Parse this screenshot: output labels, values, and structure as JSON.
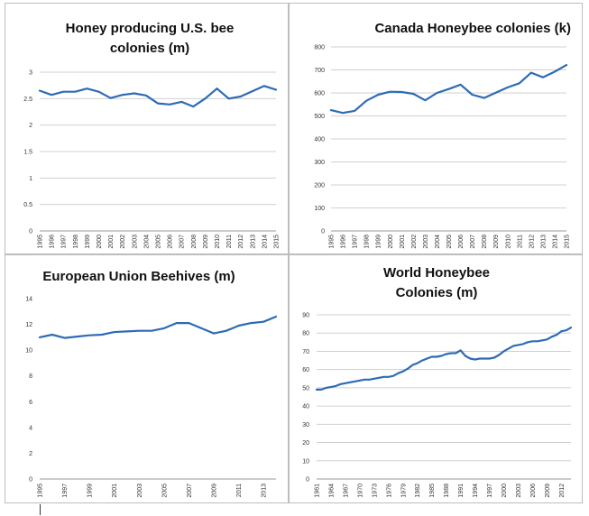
{
  "chart_data": [
    {
      "type": "line",
      "title_lines": [
        "Honey producing U.S. bee",
        "colonies (m)"
      ],
      "categories": [
        "1995",
        "1996",
        "1997",
        "1998",
        "1999",
        "2000",
        "2001",
        "2002",
        "2003",
        "2004",
        "2005",
        "2006",
        "2007",
        "2008",
        "2009",
        "2010",
        "2011",
        "2012",
        "2013",
        "2014",
        "2015"
      ],
      "values": [
        2.65,
        2.57,
        2.63,
        2.63,
        2.69,
        2.63,
        2.51,
        2.57,
        2.6,
        2.56,
        2.41,
        2.39,
        2.44,
        2.35,
        2.5,
        2.69,
        2.5,
        2.54,
        2.64,
        2.74,
        2.67
      ],
      "ylim": [
        0,
        3
      ],
      "yticks": [
        0,
        0.5,
        1,
        1.5,
        2,
        2.5,
        3
      ],
      "ytick_labels": [
        "0",
        "0.5",
        "1",
        "1.5",
        "2",
        "2.5",
        "3"
      ],
      "xtick_labels": [
        "1995",
        "1996",
        "1997",
        "1998",
        "1999",
        "2000",
        "2001",
        "2002",
        "2003",
        "2004",
        "2005",
        "2006",
        "2007",
        "2008",
        "2009",
        "2010",
        "2011",
        "2012",
        "2013",
        "2014",
        "2015"
      ],
      "grid": true
    },
    {
      "type": "line",
      "title_lines": [
        "Canada Honeybee colonies (k)"
      ],
      "categories": [
        "1995",
        "1996",
        "1997",
        "1998",
        "1999",
        "2000",
        "2001",
        "2002",
        "2003",
        "2004",
        "2005",
        "2006",
        "2007",
        "2008",
        "2009",
        "2010",
        "2011",
        "2012",
        "2013",
        "2014",
        "2015"
      ],
      "values": [
        525,
        513,
        522,
        566,
        592,
        605,
        604,
        596,
        568,
        600,
        617,
        636,
        592,
        578,
        601,
        624,
        642,
        688,
        668,
        692,
        721
      ],
      "ylim": [
        0,
        800
      ],
      "yticks": [
        0,
        100,
        200,
        300,
        400,
        500,
        600,
        700,
        800
      ],
      "ytick_labels": [
        "0",
        "100",
        "200",
        "300",
        "400",
        "500",
        "600",
        "700",
        "800"
      ],
      "xtick_labels": [
        "1995",
        "1996",
        "1997",
        "1998",
        "1999",
        "2000",
        "2001",
        "2002",
        "2003",
        "2004",
        "2005",
        "2006",
        "2007",
        "2008",
        "2009",
        "2010",
        "2011",
        "2012",
        "2013",
        "2014",
        "2015"
      ],
      "grid": true
    },
    {
      "type": "line",
      "title_lines": [
        "European Union Beehives (m)"
      ],
      "categories": [
        "1995",
        "1996",
        "1997",
        "1998",
        "1999",
        "2000",
        "2001",
        "2002",
        "2003",
        "2004",
        "2005",
        "2006",
        "2007",
        "2008",
        "2009",
        "2010",
        "2011",
        "2012",
        "2013",
        "2014"
      ],
      "values": [
        11.0,
        11.2,
        10.95,
        11.05,
        11.15,
        11.2,
        11.4,
        11.45,
        11.5,
        11.5,
        11.7,
        12.1,
        12.1,
        11.7,
        11.3,
        11.5,
        11.9,
        12.1,
        12.2,
        12.6
      ],
      "ylim": [
        0,
        14
      ],
      "yticks": [
        0,
        2,
        4,
        6,
        8,
        10,
        12,
        14
      ],
      "ytick_labels": [
        "0",
        "2",
        "4",
        "6",
        "8",
        "10",
        "12",
        "14"
      ],
      "xtick_labels": [
        "1995",
        "1997",
        "1999",
        "2001",
        "2003",
        "2005",
        "2007",
        "2009",
        "2011",
        "2013"
      ],
      "grid": false
    },
    {
      "type": "line",
      "title_lines": [
        "World Honeybee",
        "Colonies (m)"
      ],
      "categories": [
        "1961",
        "1962",
        "1963",
        "1964",
        "1965",
        "1966",
        "1967",
        "1968",
        "1969",
        "1970",
        "1971",
        "1972",
        "1973",
        "1974",
        "1975",
        "1976",
        "1977",
        "1978",
        "1979",
        "1980",
        "1981",
        "1982",
        "1983",
        "1984",
        "1985",
        "1986",
        "1987",
        "1988",
        "1989",
        "1990",
        "1991",
        "1992",
        "1993",
        "1994",
        "1995",
        "1996",
        "1997",
        "1998",
        "1999",
        "2000",
        "2001",
        "2002",
        "2003",
        "2004",
        "2005",
        "2006",
        "2007",
        "2008",
        "2009",
        "2010",
        "2011",
        "2012",
        "2013",
        "2014"
      ],
      "values": [
        49,
        49,
        50,
        50.5,
        51,
        52,
        52.5,
        53,
        53.5,
        54,
        54.5,
        54.5,
        55,
        55.5,
        56,
        56,
        56.5,
        58,
        59,
        60.5,
        62.5,
        63.5,
        65,
        66,
        67,
        67,
        67.5,
        68.5,
        69,
        69,
        70.5,
        67.5,
        66,
        65.5,
        66,
        66,
        66,
        66.5,
        68,
        70,
        71.5,
        73,
        73.5,
        74,
        75,
        75.5,
        75.5,
        76,
        76.5,
        78,
        79,
        81,
        81.5,
        83
      ],
      "ylim": [
        0,
        90
      ],
      "yticks": [
        0,
        10,
        20,
        30,
        40,
        50,
        60,
        70,
        80,
        90
      ],
      "ytick_labels": [
        "0",
        "10",
        "20",
        "30",
        "40",
        "50",
        "60",
        "70",
        "80",
        "90"
      ],
      "xtick_labels": [
        "1961",
        "1964",
        "1967",
        "1970",
        "1973",
        "1976",
        "1979",
        "1982",
        "1985",
        "1988",
        "1991",
        "1994",
        "1997",
        "2000",
        "2003",
        "2006",
        "2009",
        "2012"
      ],
      "grid": true
    }
  ]
}
